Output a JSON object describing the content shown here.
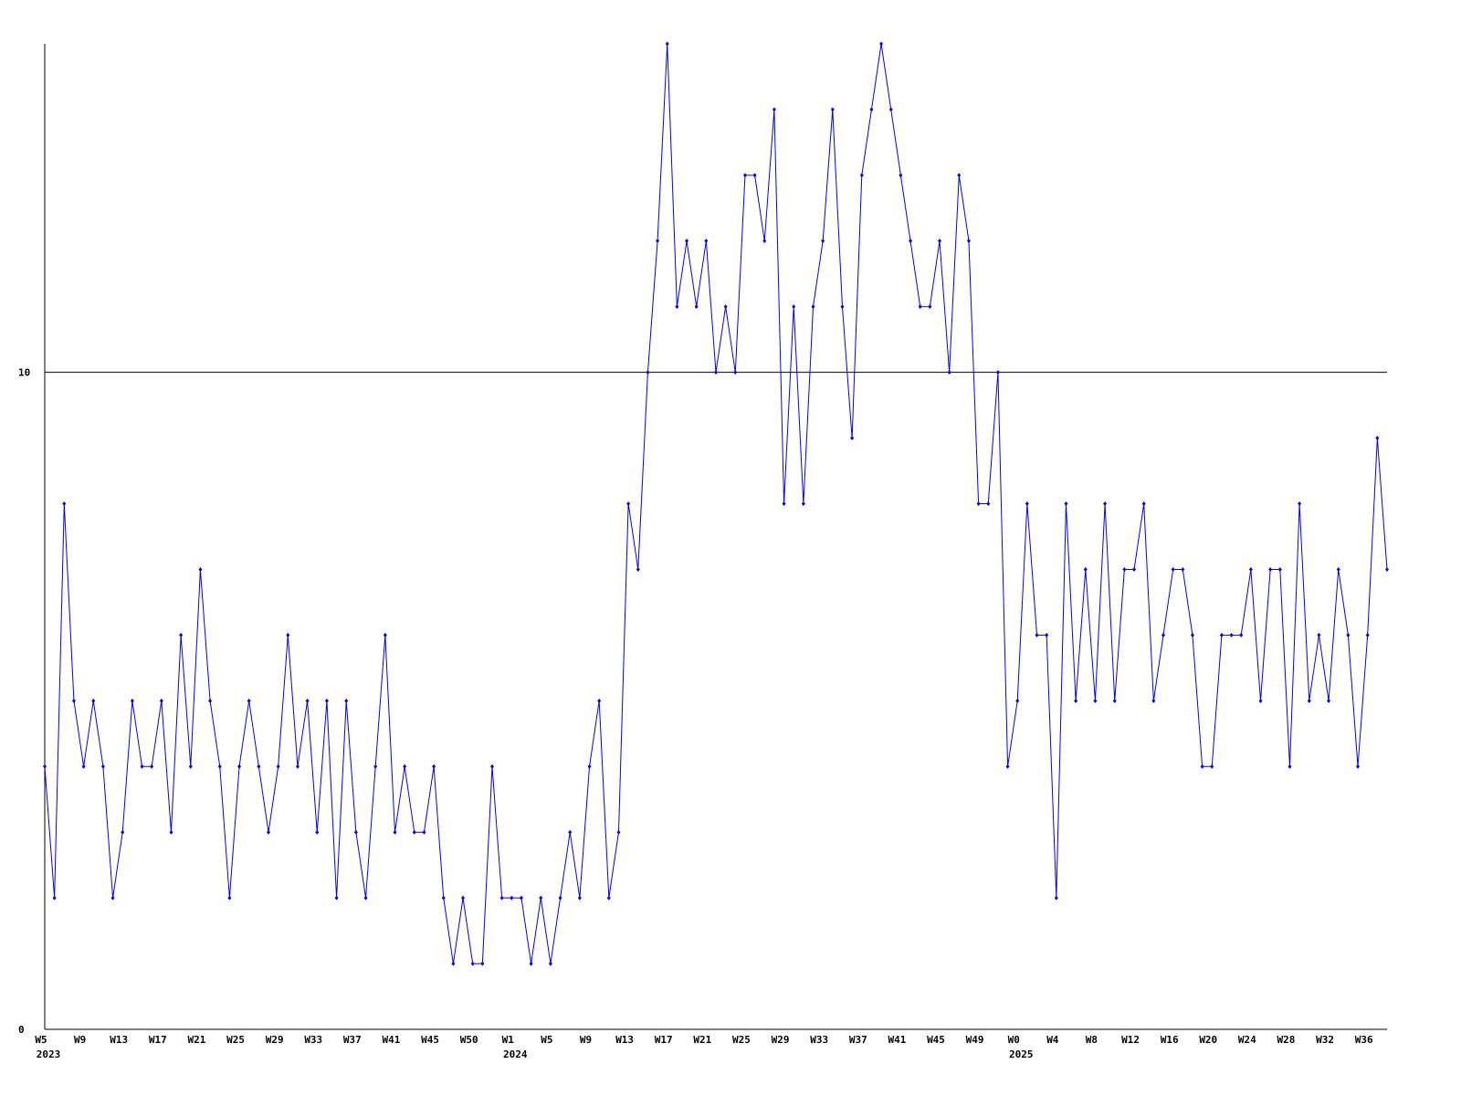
{
  "chart_data": {
    "type": "line",
    "categories": [
      "W5",
      null,
      null,
      null,
      "W9",
      null,
      null,
      null,
      "W13",
      null,
      null,
      null,
      "W17",
      null,
      null,
      null,
      "W21",
      null,
      null,
      null,
      "W25",
      null,
      null,
      null,
      "W29",
      null,
      null,
      null,
      "W33",
      null,
      null,
      null,
      "W37",
      null,
      null,
      null,
      "W41",
      null,
      null,
      null,
      "W45",
      null,
      null,
      null,
      "W50",
      null,
      null,
      null,
      "W1",
      null,
      null,
      null,
      "W5",
      null,
      null,
      null,
      "W9",
      null,
      null,
      null,
      "W13",
      null,
      null,
      null,
      "W17",
      null,
      null,
      null,
      "W21",
      null,
      null,
      null,
      "W25",
      null,
      null,
      null,
      "W29",
      null,
      null,
      null,
      "W33",
      null,
      null,
      null,
      "W37",
      null,
      null,
      null,
      "W41",
      null,
      null,
      null,
      "W45",
      null,
      null,
      null,
      "W49",
      null,
      null,
      null,
      "W0",
      null,
      null,
      null,
      "W4",
      null,
      null,
      null,
      "W8",
      null,
      null,
      null,
      "W12",
      null,
      null,
      null,
      "W16",
      null,
      null,
      null,
      "W20",
      null,
      null,
      null,
      "W24",
      null,
      null,
      null,
      "W28",
      null,
      null,
      null,
      "W32",
      null,
      null,
      null,
      "W36",
      null,
      null
    ],
    "x_sublabels": [
      "2023",
      null,
      null,
      null,
      null,
      null,
      null,
      null,
      null,
      null,
      null,
      null,
      null,
      null,
      null,
      null,
      null,
      null,
      null,
      null,
      null,
      null,
      null,
      null,
      null,
      null,
      null,
      null,
      null,
      null,
      null,
      null,
      null,
      null,
      null,
      null,
      null,
      null,
      null,
      null,
      null,
      null,
      null,
      null,
      null,
      null,
      null,
      null,
      "2024",
      null,
      null,
      null,
      null,
      null,
      null,
      null,
      null,
      null,
      null,
      null,
      null,
      null,
      null,
      null,
      null,
      null,
      null,
      null,
      null,
      null,
      null,
      null,
      null,
      null,
      null,
      null,
      null,
      null,
      null,
      null,
      null,
      null,
      null,
      null,
      null,
      null,
      null,
      null,
      null,
      null,
      null,
      null,
      null,
      null,
      null,
      null,
      null,
      null,
      null,
      null,
      "2025",
      null,
      null,
      null,
      null,
      null,
      null,
      null,
      null,
      null,
      null,
      null,
      null,
      null,
      null,
      null,
      null,
      null,
      null,
      null,
      null,
      null,
      null,
      null,
      null,
      null,
      null,
      null,
      null,
      null,
      null,
      null,
      null,
      null,
      null,
      null,
      null,
      null,
      null
    ],
    "series": [
      {
        "color": "#0000ff",
        "values": [
          4,
          2,
          8,
          5,
          4,
          5,
          4,
          2,
          3,
          5,
          4,
          4,
          5,
          3,
          6,
          4,
          7,
          5,
          4,
          2,
          4,
          5,
          4,
          3,
          4,
          6,
          4,
          5,
          3,
          5,
          2,
          5,
          3,
          2,
          4,
          6,
          3,
          4,
          3,
          3,
          4,
          2,
          1,
          2,
          1,
          1,
          4,
          2,
          2,
          2,
          1,
          2,
          1,
          2,
          3,
          2,
          4,
          5,
          2,
          3,
          8,
          7,
          10,
          12,
          15,
          11,
          12,
          11,
          12,
          10,
          11,
          10,
          13,
          13,
          12,
          14,
          8,
          11,
          8,
          11,
          12,
          14,
          11,
          9,
          13,
          14,
          15,
          14,
          13,
          12,
          11,
          11,
          12,
          10,
          13,
          12,
          8,
          8,
          10,
          4,
          5,
          8,
          6,
          6,
          2,
          8,
          5,
          7,
          5,
          8,
          5,
          7,
          7,
          8,
          5,
          6,
          7,
          7,
          6,
          4,
          4,
          6,
          6,
          6,
          7,
          5,
          7,
          7,
          4,
          8,
          5,
          6,
          5,
          7,
          6,
          4,
          6,
          9,
          7
        ]
      }
    ],
    "ylim": [
      0,
      15
    ],
    "yticks": [
      0,
      10
    ],
    "grid": true
  }
}
